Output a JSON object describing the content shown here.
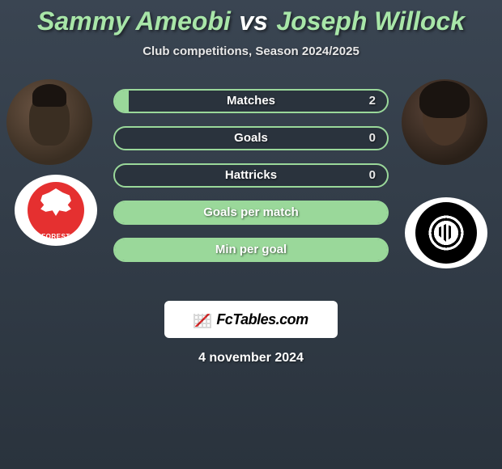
{
  "title": {
    "name1": "Sammy Ameobi",
    "vs": "vs",
    "name2": "Joseph Willock"
  },
  "subtitle": "Club competitions, Season 2024/2025",
  "colors": {
    "accent": "#a8e6a8",
    "bar_border": "#9ad89a",
    "bar_fill": "#9ad89a",
    "bg_top": "#3a4552",
    "bg_bottom": "#2a333d",
    "crest_left": "#e53030",
    "text": "#ffffff"
  },
  "bars": [
    {
      "label": "Matches",
      "value": "2",
      "fill_pct": 5
    },
    {
      "label": "Goals",
      "value": "0",
      "fill_pct": 0
    },
    {
      "label": "Hattricks",
      "value": "0",
      "fill_pct": 0
    },
    {
      "label": "Goals per match",
      "value": "",
      "fill_pct": 100
    },
    {
      "label": "Min per goal",
      "value": "",
      "fill_pct": 100
    }
  ],
  "logo": "FcTables.com",
  "date": "4 november 2024"
}
